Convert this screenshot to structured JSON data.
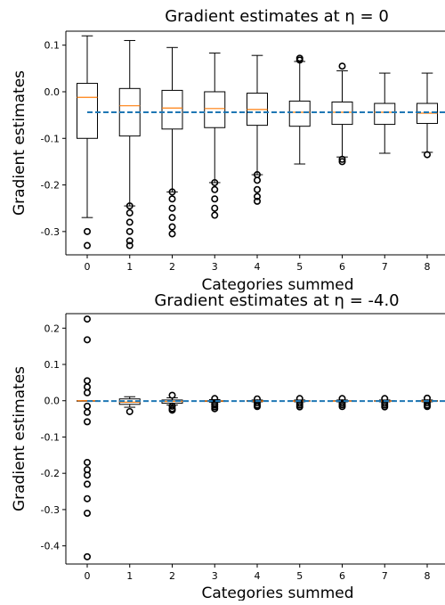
{
  "chart_data": [
    {
      "type": "box",
      "title": "Gradient estimates at η = 0",
      "xlabel": "Categories summed",
      "ylabel": "Gradient estimates",
      "ylim": [
        -0.35,
        0.13
      ],
      "yticks": [
        -0.3,
        -0.2,
        -0.1,
        0.0,
        0.1
      ],
      "ytick_labels": [
        "-0.3",
        "-0.2",
        "-0.1",
        "0.0",
        "0.1"
      ],
      "categories": [
        "0",
        "1",
        "2",
        "3",
        "4",
        "5",
        "6",
        "7",
        "8"
      ],
      "reference_line": -0.044,
      "boxes": [
        {
          "lw": -0.27,
          "q1": -0.1,
          "median": -0.012,
          "q3": 0.018,
          "uw": 0.12,
          "outliers": [
            -0.3,
            -0.33
          ]
        },
        {
          "lw": -0.245,
          "q1": -0.095,
          "median": -0.03,
          "q3": 0.007,
          "uw": 0.11,
          "outliers": [
            -0.245,
            -0.26,
            -0.28,
            -0.3,
            -0.32,
            -0.33
          ]
        },
        {
          "lw": -0.215,
          "q1": -0.08,
          "median": -0.035,
          "q3": 0.003,
          "uw": 0.095,
          "outliers": [
            -0.215,
            -0.23,
            -0.25,
            -0.27,
            -0.29,
            -0.305
          ]
        },
        {
          "lw": -0.195,
          "q1": -0.077,
          "median": -0.036,
          "q3": 0.0,
          "uw": 0.083,
          "outliers": [
            -0.195,
            -0.21,
            -0.23,
            -0.25,
            -0.265
          ]
        },
        {
          "lw": -0.178,
          "q1": -0.072,
          "median": -0.038,
          "q3": -0.003,
          "uw": 0.078,
          "outliers": [
            -0.178,
            -0.19,
            -0.21,
            -0.225,
            -0.235
          ]
        },
        {
          "lw": -0.155,
          "q1": -0.074,
          "median": -0.044,
          "q3": -0.02,
          "uw": 0.065,
          "outliers": [
            0.068,
            0.072
          ]
        },
        {
          "lw": -0.14,
          "q1": -0.07,
          "median": -0.044,
          "q3": -0.022,
          "uw": 0.045,
          "outliers": [
            -0.145,
            -0.15,
            0.055
          ]
        },
        {
          "lw": -0.132,
          "q1": -0.07,
          "median": -0.044,
          "q3": -0.025,
          "uw": 0.04,
          "outliers": []
        },
        {
          "lw": -0.13,
          "q1": -0.068,
          "median": -0.046,
          "q3": -0.025,
          "uw": 0.04,
          "outliers": [
            -0.135
          ]
        }
      ]
    },
    {
      "type": "box",
      "title": "Gradient estimates at η = -4.0",
      "xlabel": "Categories summed",
      "ylabel": "Gradient estimates",
      "ylim": [
        -0.45,
        0.24
      ],
      "yticks": [
        -0.4,
        -0.3,
        -0.2,
        -0.1,
        0.0,
        0.1,
        0.2
      ],
      "ytick_labels": [
        "-0.4",
        "-0.3",
        "-0.2",
        "-0.1",
        "0.0",
        "0.1",
        "0.2"
      ],
      "categories": [
        "0",
        "1",
        "2",
        "3",
        "4",
        "5",
        "6",
        "7",
        "8"
      ],
      "reference_line": -0.001,
      "boxes": [
        {
          "lw": 0.0,
          "q1": 0.0,
          "median": 0.0,
          "q3": 0.0,
          "uw": 0.0,
          "outliers": [
            0.225,
            0.168,
            0.055,
            0.038,
            0.022,
            -0.015,
            -0.032,
            -0.058,
            -0.17,
            -0.19,
            -0.205,
            -0.23,
            -0.27,
            -0.31,
            -0.43
          ]
        },
        {
          "lw": -0.018,
          "q1": -0.01,
          "median": -0.004,
          "q3": 0.005,
          "uw": 0.011,
          "outliers": [
            -0.03
          ]
        },
        {
          "lw": -0.012,
          "q1": -0.007,
          "median": -0.002,
          "q3": 0.002,
          "uw": 0.008,
          "outliers": [
            0.015,
            -0.015,
            -0.022,
            -0.026
          ]
        },
        {
          "lw": -0.004,
          "q1": -0.002,
          "median": -0.001,
          "q3": 0.0,
          "uw": 0.003,
          "outliers": [
            0.006,
            -0.008,
            -0.012,
            -0.017,
            -0.022
          ]
        },
        {
          "lw": -0.003,
          "q1": -0.001,
          "median": -0.001,
          "q3": 0.0,
          "uw": 0.002,
          "outliers": [
            0.005,
            -0.006,
            -0.012,
            -0.016
          ]
        },
        {
          "lw": -0.003,
          "q1": -0.001,
          "median": -0.001,
          "q3": 0.0,
          "uw": 0.002,
          "outliers": [
            0.006,
            -0.007,
            -0.012,
            -0.017
          ]
        },
        {
          "lw": -0.003,
          "q1": -0.001,
          "median": -0.001,
          "q3": 0.0,
          "uw": 0.002,
          "outliers": [
            0.006,
            -0.006,
            -0.011,
            -0.016
          ]
        },
        {
          "lw": -0.003,
          "q1": -0.001,
          "median": -0.001,
          "q3": 0.0,
          "uw": 0.002,
          "outliers": [
            0.006,
            -0.007,
            -0.012,
            -0.017
          ]
        },
        {
          "lw": -0.003,
          "q1": -0.001,
          "median": -0.001,
          "q3": 0.0,
          "uw": 0.002,
          "outliers": [
            0.007,
            -0.006,
            -0.012,
            -0.016
          ]
        }
      ]
    }
  ],
  "colors": {
    "median": "#ff7f0e",
    "reference": "#1f77b4",
    "box": "#000000"
  }
}
